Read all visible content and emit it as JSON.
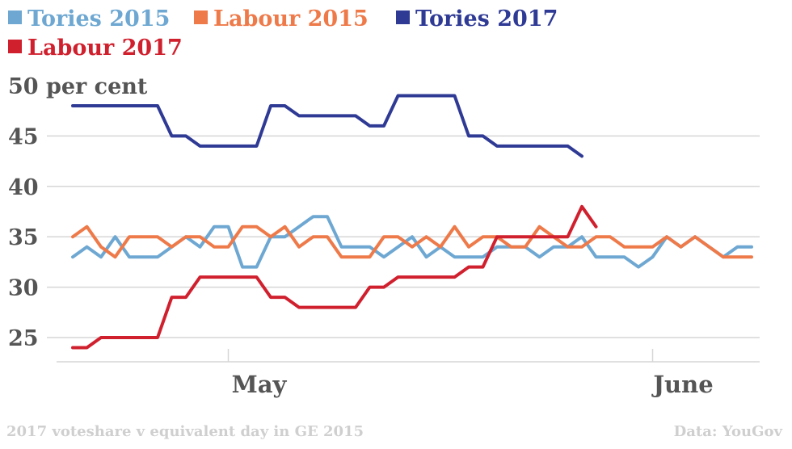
{
  "chart_data": {
    "type": "line",
    "title": "",
    "ylabel": "per cent",
    "ylim": [
      22,
      50
    ],
    "yticks": [
      25,
      30,
      35,
      40,
      45,
      50
    ],
    "ytick_labels": [
      "25",
      "30",
      "35",
      "40",
      "45",
      "50 per cent"
    ],
    "xticks": [
      {
        "label": "May",
        "x": 11
      },
      {
        "label": "June",
        "x": 41
      }
    ],
    "grid": true,
    "legend_position": "top-left",
    "series": [
      {
        "name": "Tories 2015",
        "color": "#6ea8d2",
        "x": [
          0,
          1,
          2,
          3,
          4,
          5,
          6,
          7,
          8,
          9,
          10,
          11,
          12,
          13,
          14,
          15,
          16,
          17,
          18,
          19,
          20,
          21,
          22,
          23,
          24,
          25,
          26,
          27,
          28,
          29,
          30,
          31,
          32,
          33,
          34,
          35,
          36,
          37,
          38,
          39,
          40,
          41,
          42,
          43,
          44,
          45,
          46,
          47,
          48
        ],
        "values": [
          33,
          34,
          33,
          35,
          33,
          33,
          33,
          34,
          35,
          34,
          36,
          36,
          32,
          32,
          35,
          35,
          36,
          37,
          37,
          34,
          34,
          34,
          33,
          34,
          35,
          33,
          34,
          33,
          33,
          33,
          34,
          34,
          34,
          33,
          34,
          34,
          35,
          33,
          33,
          33,
          32,
          33,
          35,
          34,
          35,
          34,
          33,
          34,
          34
        ]
      },
      {
        "name": "Labour 2015",
        "color": "#ee7a4a",
        "x": [
          0,
          1,
          2,
          3,
          4,
          5,
          6,
          7,
          8,
          9,
          10,
          11,
          12,
          13,
          14,
          15,
          16,
          17,
          18,
          19,
          20,
          21,
          22,
          23,
          24,
          25,
          26,
          27,
          28,
          29,
          30,
          31,
          32,
          33,
          34,
          35,
          36,
          37,
          38,
          39,
          40,
          41,
          42,
          43,
          44,
          45,
          46,
          47,
          48
        ],
        "values": [
          35,
          36,
          34,
          33,
          35,
          35,
          35,
          34,
          35,
          35,
          34,
          34,
          36,
          36,
          35,
          36,
          34,
          35,
          35,
          33,
          33,
          33,
          35,
          35,
          34,
          35,
          34,
          36,
          34,
          35,
          35,
          34,
          34,
          36,
          35,
          34,
          34,
          35,
          35,
          34,
          34,
          34,
          35,
          34,
          35,
          34,
          33,
          33,
          33
        ]
      },
      {
        "name": "Tories 2017",
        "color": "#2f3a95",
        "x": [
          0,
          1,
          2,
          3,
          4,
          5,
          6,
          7,
          8,
          9,
          10,
          11,
          12,
          13,
          14,
          15,
          16,
          17,
          18,
          19,
          20,
          21,
          22,
          23,
          24,
          25,
          26,
          27,
          28,
          29,
          30,
          31,
          32,
          33,
          34,
          35,
          36
        ],
        "values": [
          48,
          48,
          48,
          48,
          48,
          48,
          48,
          45,
          45,
          44,
          44,
          44,
          44,
          44,
          48,
          48,
          47,
          47,
          47,
          47,
          47,
          46,
          46,
          49,
          49,
          49,
          49,
          49,
          45,
          45,
          44,
          44,
          44,
          44,
          44,
          44,
          43
        ]
      },
      {
        "name": "Labour 2017",
        "color": "#d0202e",
        "x": [
          0,
          1,
          2,
          3,
          4,
          5,
          6,
          7,
          8,
          9,
          10,
          11,
          12,
          13,
          14,
          15,
          16,
          17,
          18,
          19,
          20,
          21,
          22,
          23,
          24,
          25,
          26,
          27,
          28,
          29,
          30,
          31,
          32,
          33,
          34,
          35,
          36,
          37
        ],
        "values": [
          24,
          24,
          25,
          25,
          25,
          25,
          25,
          29,
          29,
          31,
          31,
          31,
          31,
          31,
          29,
          29,
          28,
          28,
          28,
          28,
          28,
          30,
          30,
          31,
          31,
          31,
          31,
          31,
          32,
          32,
          35,
          35,
          35,
          35,
          35,
          35,
          38,
          36
        ]
      }
    ]
  },
  "footer": {
    "left": "2017 voteshare v equivalent day in GE 2015",
    "right": "Data: YouGov"
  }
}
